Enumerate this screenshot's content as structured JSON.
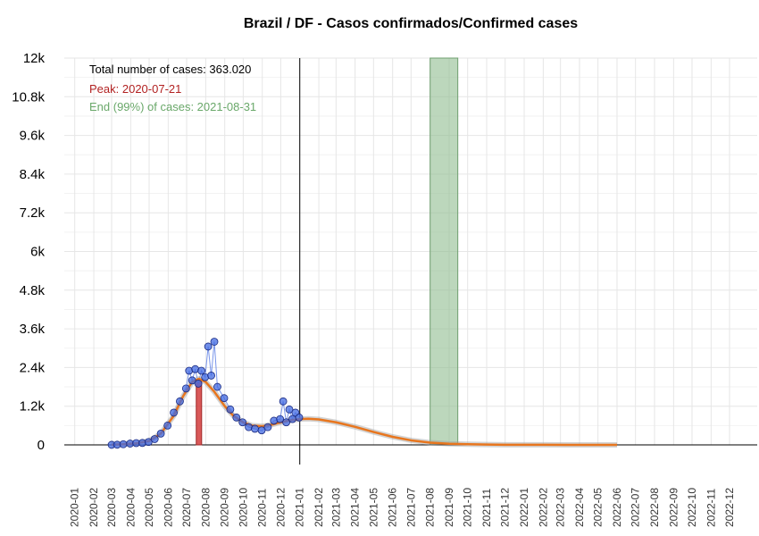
{
  "chart_data": {
    "type": "line",
    "title": "Brazil / DF - Casos confirmados/Confirmed cases",
    "xlabel": "",
    "ylabel": "",
    "ylim": [
      0,
      12000
    ],
    "y_ticks": [
      {
        "value": 0,
        "label": "0"
      },
      {
        "value": 1200,
        "label": "1.2k"
      },
      {
        "value": 2400,
        "label": "2.4k"
      },
      {
        "value": 3600,
        "label": "3.6k"
      },
      {
        "value": 4800,
        "label": "4.8k"
      },
      {
        "value": 6000,
        "label": "6k"
      },
      {
        "value": 7200,
        "label": "7.2k"
      },
      {
        "value": 8400,
        "label": "8.4k"
      },
      {
        "value": 9600,
        "label": "9.6k"
      },
      {
        "value": 10800,
        "label": "10.8k"
      },
      {
        "value": 12000,
        "label": "12k"
      }
    ],
    "x_ticks": [
      "2020-01",
      "2020-02",
      "2020-03",
      "2020-04",
      "2020-05",
      "2020-06",
      "2020-07",
      "2020-08",
      "2020-09",
      "2020-10",
      "2020-11",
      "2020-12",
      "2021-01",
      "2021-02",
      "2021-03",
      "2021-04",
      "2021-05",
      "2021-06",
      "2021-07",
      "2021-08",
      "2021-09",
      "2021-10",
      "2021-11",
      "2021-12",
      "2022-01",
      "2022-02",
      "2022-03",
      "2022-04",
      "2022-05",
      "2022-06",
      "2022-07",
      "2022-08",
      "2022-09",
      "2022-10",
      "2022-11",
      "2022-12"
    ],
    "xlim": [
      "2019-12-15",
      "2023-01-15"
    ],
    "grid": true,
    "annotations": {
      "total": "Total number of cases: 363.020",
      "peak": "Peak: 2020-07-21",
      "end": "End (99%) of cases: 2021-08-31"
    },
    "colors": {
      "observed_points": "#4169e1",
      "fitted_curve": "#e8761e",
      "peak_bar": "#d23c3c",
      "end_band": "#8fbc8f",
      "peak_text": "#b22222",
      "end_text": "#6aa86a"
    },
    "today_line": "2021-01-01",
    "peak_bar": {
      "x": "2020-07-21",
      "value": 2000
    },
    "end_band": {
      "x_start": "2021-08-01",
      "x_end": "2021-09-15"
    },
    "observed_series": [
      {
        "x": "2020-03-01",
        "y": 2
      },
      {
        "x": "2020-03-10",
        "y": 5
      },
      {
        "x": "2020-03-20",
        "y": 20
      },
      {
        "x": "2020-03-31",
        "y": 40
      },
      {
        "x": "2020-04-10",
        "y": 55
      },
      {
        "x": "2020-04-20",
        "y": 60
      },
      {
        "x": "2020-04-30",
        "y": 90
      },
      {
        "x": "2020-05-10",
        "y": 180
      },
      {
        "x": "2020-05-20",
        "y": 350
      },
      {
        "x": "2020-05-31",
        "y": 600
      },
      {
        "x": "2020-06-10",
        "y": 1000
      },
      {
        "x": "2020-06-20",
        "y": 1350
      },
      {
        "x": "2020-06-30",
        "y": 1750
      },
      {
        "x": "2020-07-05",
        "y": 2300
      },
      {
        "x": "2020-07-10",
        "y": 2000
      },
      {
        "x": "2020-07-15",
        "y": 2350
      },
      {
        "x": "2020-07-20",
        "y": 1900
      },
      {
        "x": "2020-07-25",
        "y": 2300
      },
      {
        "x": "2020-07-31",
        "y": 2100
      },
      {
        "x": "2020-08-05",
        "y": 3050
      },
      {
        "x": "2020-08-10",
        "y": 2150
      },
      {
        "x": "2020-08-15",
        "y": 3200
      },
      {
        "x": "2020-08-20",
        "y": 1800
      },
      {
        "x": "2020-08-31",
        "y": 1450
      },
      {
        "x": "2020-09-10",
        "y": 1100
      },
      {
        "x": "2020-09-20",
        "y": 850
      },
      {
        "x": "2020-09-30",
        "y": 700
      },
      {
        "x": "2020-10-10",
        "y": 550
      },
      {
        "x": "2020-10-20",
        "y": 500
      },
      {
        "x": "2020-10-31",
        "y": 450
      },
      {
        "x": "2020-11-10",
        "y": 550
      },
      {
        "x": "2020-11-20",
        "y": 750
      },
      {
        "x": "2020-11-30",
        "y": 800
      },
      {
        "x": "2020-12-05",
        "y": 1350
      },
      {
        "x": "2020-12-10",
        "y": 700
      },
      {
        "x": "2020-12-15",
        "y": 1100
      },
      {
        "x": "2020-12-20",
        "y": 800
      },
      {
        "x": "2020-12-25",
        "y": 1000
      },
      {
        "x": "2020-12-31",
        "y": 850
      }
    ],
    "fitted_series": [
      {
        "x": "2020-03-01",
        "y": 5
      },
      {
        "x": "2020-03-20",
        "y": 20
      },
      {
        "x": "2020-04-10",
        "y": 50
      },
      {
        "x": "2020-05-01",
        "y": 120
      },
      {
        "x": "2020-05-20",
        "y": 350
      },
      {
        "x": "2020-06-10",
        "y": 900
      },
      {
        "x": "2020-06-25",
        "y": 1500
      },
      {
        "x": "2020-07-10",
        "y": 1950
      },
      {
        "x": "2020-07-21",
        "y": 2050
      },
      {
        "x": "2020-08-01",
        "y": 1950
      },
      {
        "x": "2020-08-15",
        "y": 1650
      },
      {
        "x": "2020-09-01",
        "y": 1200
      },
      {
        "x": "2020-09-15",
        "y": 900
      },
      {
        "x": "2020-10-01",
        "y": 700
      },
      {
        "x": "2020-10-15",
        "y": 600
      },
      {
        "x": "2020-11-01",
        "y": 580
      },
      {
        "x": "2020-11-15",
        "y": 620
      },
      {
        "x": "2020-12-01",
        "y": 700
      },
      {
        "x": "2020-12-15",
        "y": 760
      },
      {
        "x": "2021-01-01",
        "y": 800
      },
      {
        "x": "2021-01-15",
        "y": 810
      },
      {
        "x": "2021-02-01",
        "y": 790
      },
      {
        "x": "2021-03-01",
        "y": 700
      },
      {
        "x": "2021-04-01",
        "y": 560
      },
      {
        "x": "2021-05-01",
        "y": 400
      },
      {
        "x": "2021-06-01",
        "y": 250
      },
      {
        "x": "2021-07-01",
        "y": 140
      },
      {
        "x": "2021-08-01",
        "y": 70
      },
      {
        "x": "2021-09-01",
        "y": 35
      },
      {
        "x": "2021-10-01",
        "y": 20
      },
      {
        "x": "2021-11-01",
        "y": 10
      },
      {
        "x": "2021-12-01",
        "y": 5
      },
      {
        "x": "2022-02-01",
        "y": 2
      },
      {
        "x": "2022-06-01",
        "y": 0
      }
    ]
  }
}
